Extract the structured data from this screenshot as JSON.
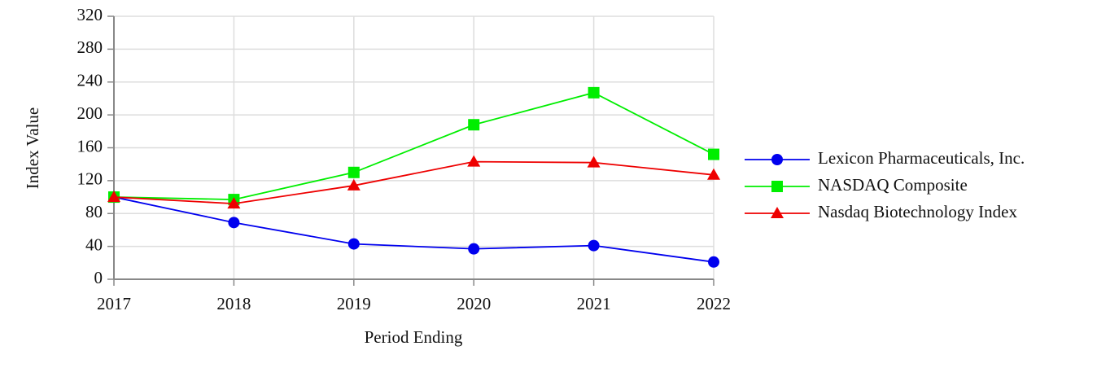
{
  "chart_data": {
    "type": "line",
    "x_label": "Period Ending",
    "y_label": "Index Value",
    "x": [
      2017,
      2018,
      2019,
      2020,
      2021,
      2022
    ],
    "xlim": [
      2017,
      2022
    ],
    "xticks": [
      2017,
      2018,
      2019,
      2020,
      2021,
      2022
    ],
    "ylim": [
      0,
      320
    ],
    "yticks": [
      0,
      40,
      80,
      120,
      160,
      200,
      240,
      280,
      320
    ],
    "grid": true,
    "series": [
      {
        "name": "Lexicon Pharmaceuticals, Inc.",
        "color": "#0000ee",
        "marker": "circle",
        "values": [
          100,
          69,
          43,
          37,
          41,
          21
        ]
      },
      {
        "name": "NASDAQ Composite",
        "color": "#00ee00",
        "marker": "square",
        "values": [
          100,
          97,
          130,
          188,
          227,
          152
        ]
      },
      {
        "name": "Nasdaq Biotechnology Index",
        "color": "#ee0000",
        "marker": "triangle",
        "values": [
          100,
          92,
          114,
          143,
          142,
          127
        ]
      }
    ]
  }
}
